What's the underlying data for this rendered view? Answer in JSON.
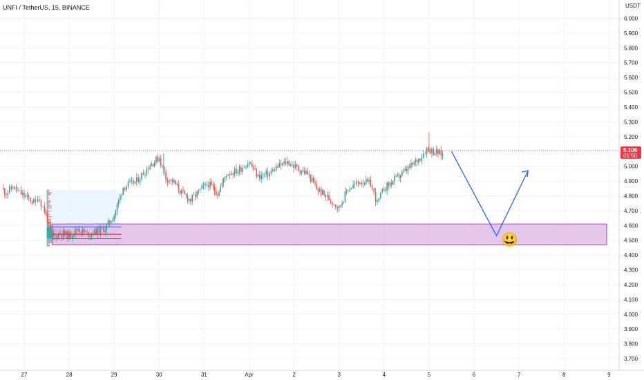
{
  "header": {
    "symbol": "UNFI / TetherUS, 15, BINANCE",
    "currency": "USDT"
  },
  "price_tag": {
    "price": "5.106",
    "countdown": "01:50",
    "color": "#f23645"
  },
  "colors": {
    "up": "#26a69a",
    "down": "#ef5350",
    "zone_fill": "#e1bee7",
    "zone_border": "#9c27b0",
    "projection": "#2962ff",
    "profile_bg": "#e3f2fd"
  },
  "emoji": "😃",
  "chart_data": {
    "type": "candlestick",
    "x_ticks": [
      "27",
      "28",
      "29",
      "30",
      "31",
      "Apr",
      "2",
      "3",
      "4",
      "5",
      "6",
      "7",
      "8",
      "9"
    ],
    "y_ticks": [
      "6.000",
      "5.900",
      "5.800",
      "5.700",
      "5.600",
      "5.500",
      "5.400",
      "5.300",
      "5.200",
      "5.100",
      "5.000",
      "4.900",
      "4.800",
      "4.700",
      "4.600",
      "4.500",
      "4.400",
      "4.300",
      "4.200",
      "4.100",
      "4.000",
      "3.900",
      "3.800",
      "3.700"
    ],
    "ylim": [
      3.66,
      6.08
    ],
    "last_price": 5.106,
    "price_path": [
      [
        26.5,
        4.85
      ],
      [
        26.6,
        4.82
      ],
      [
        26.75,
        4.86
      ],
      [
        26.9,
        4.82
      ],
      [
        27.1,
        4.78
      ],
      [
        27.25,
        4.75
      ],
      [
        27.3,
        4.8
      ],
      [
        27.45,
        4.7
      ],
      [
        27.55,
        4.6
      ],
      [
        27.65,
        4.52
      ],
      [
        27.8,
        4.55
      ],
      [
        28.0,
        4.53
      ],
      [
        28.2,
        4.58
      ],
      [
        28.4,
        4.54
      ],
      [
        28.6,
        4.56
      ],
      [
        28.8,
        4.58
      ],
      [
        29.0,
        4.67
      ],
      [
        29.2,
        4.86
      ],
      [
        29.5,
        4.9
      ],
      [
        29.8,
        5.01
      ],
      [
        30.0,
        5.06
      ],
      [
        30.15,
        4.92
      ],
      [
        30.3,
        4.9
      ],
      [
        30.5,
        4.82
      ],
      [
        30.7,
        4.77
      ],
      [
        30.95,
        4.85
      ],
      [
        31.1,
        4.88
      ],
      [
        31.3,
        4.82
      ],
      [
        31.5,
        4.95
      ],
      [
        31.75,
        4.97
      ],
      [
        32.0,
        5.03
      ],
      [
        32.2,
        4.93
      ],
      [
        32.45,
        4.95
      ],
      [
        32.6,
        4.99
      ],
      [
        32.85,
        5.03
      ],
      [
        33.1,
        4.98
      ],
      [
        33.3,
        4.95
      ],
      [
        33.5,
        4.85
      ],
      [
        33.7,
        4.8
      ],
      [
        34.0,
        4.72
      ],
      [
        34.2,
        4.85
      ],
      [
        34.5,
        4.9
      ],
      [
        34.7,
        4.88
      ],
      [
        34.85,
        4.75
      ],
      [
        35.0,
        4.85
      ],
      [
        35.2,
        4.9
      ],
      [
        35.4,
        4.95
      ],
      [
        35.6,
        5.0
      ],
      [
        35.8,
        5.06
      ],
      [
        35.95,
        5.12
      ],
      [
        36.1,
        5.1
      ],
      [
        36.3,
        5.08
      ]
    ],
    "volume_profile_poc": 4.54,
    "value_area_high": 4.59,
    "value_area_low": 4.51,
    "demand_zone": {
      "low": 4.47,
      "high": 4.61
    },
    "projection": [
      [
        36.5,
        5.1
      ],
      [
        37.5,
        4.53
      ],
      [
        38.2,
        4.97
      ]
    ]
  }
}
